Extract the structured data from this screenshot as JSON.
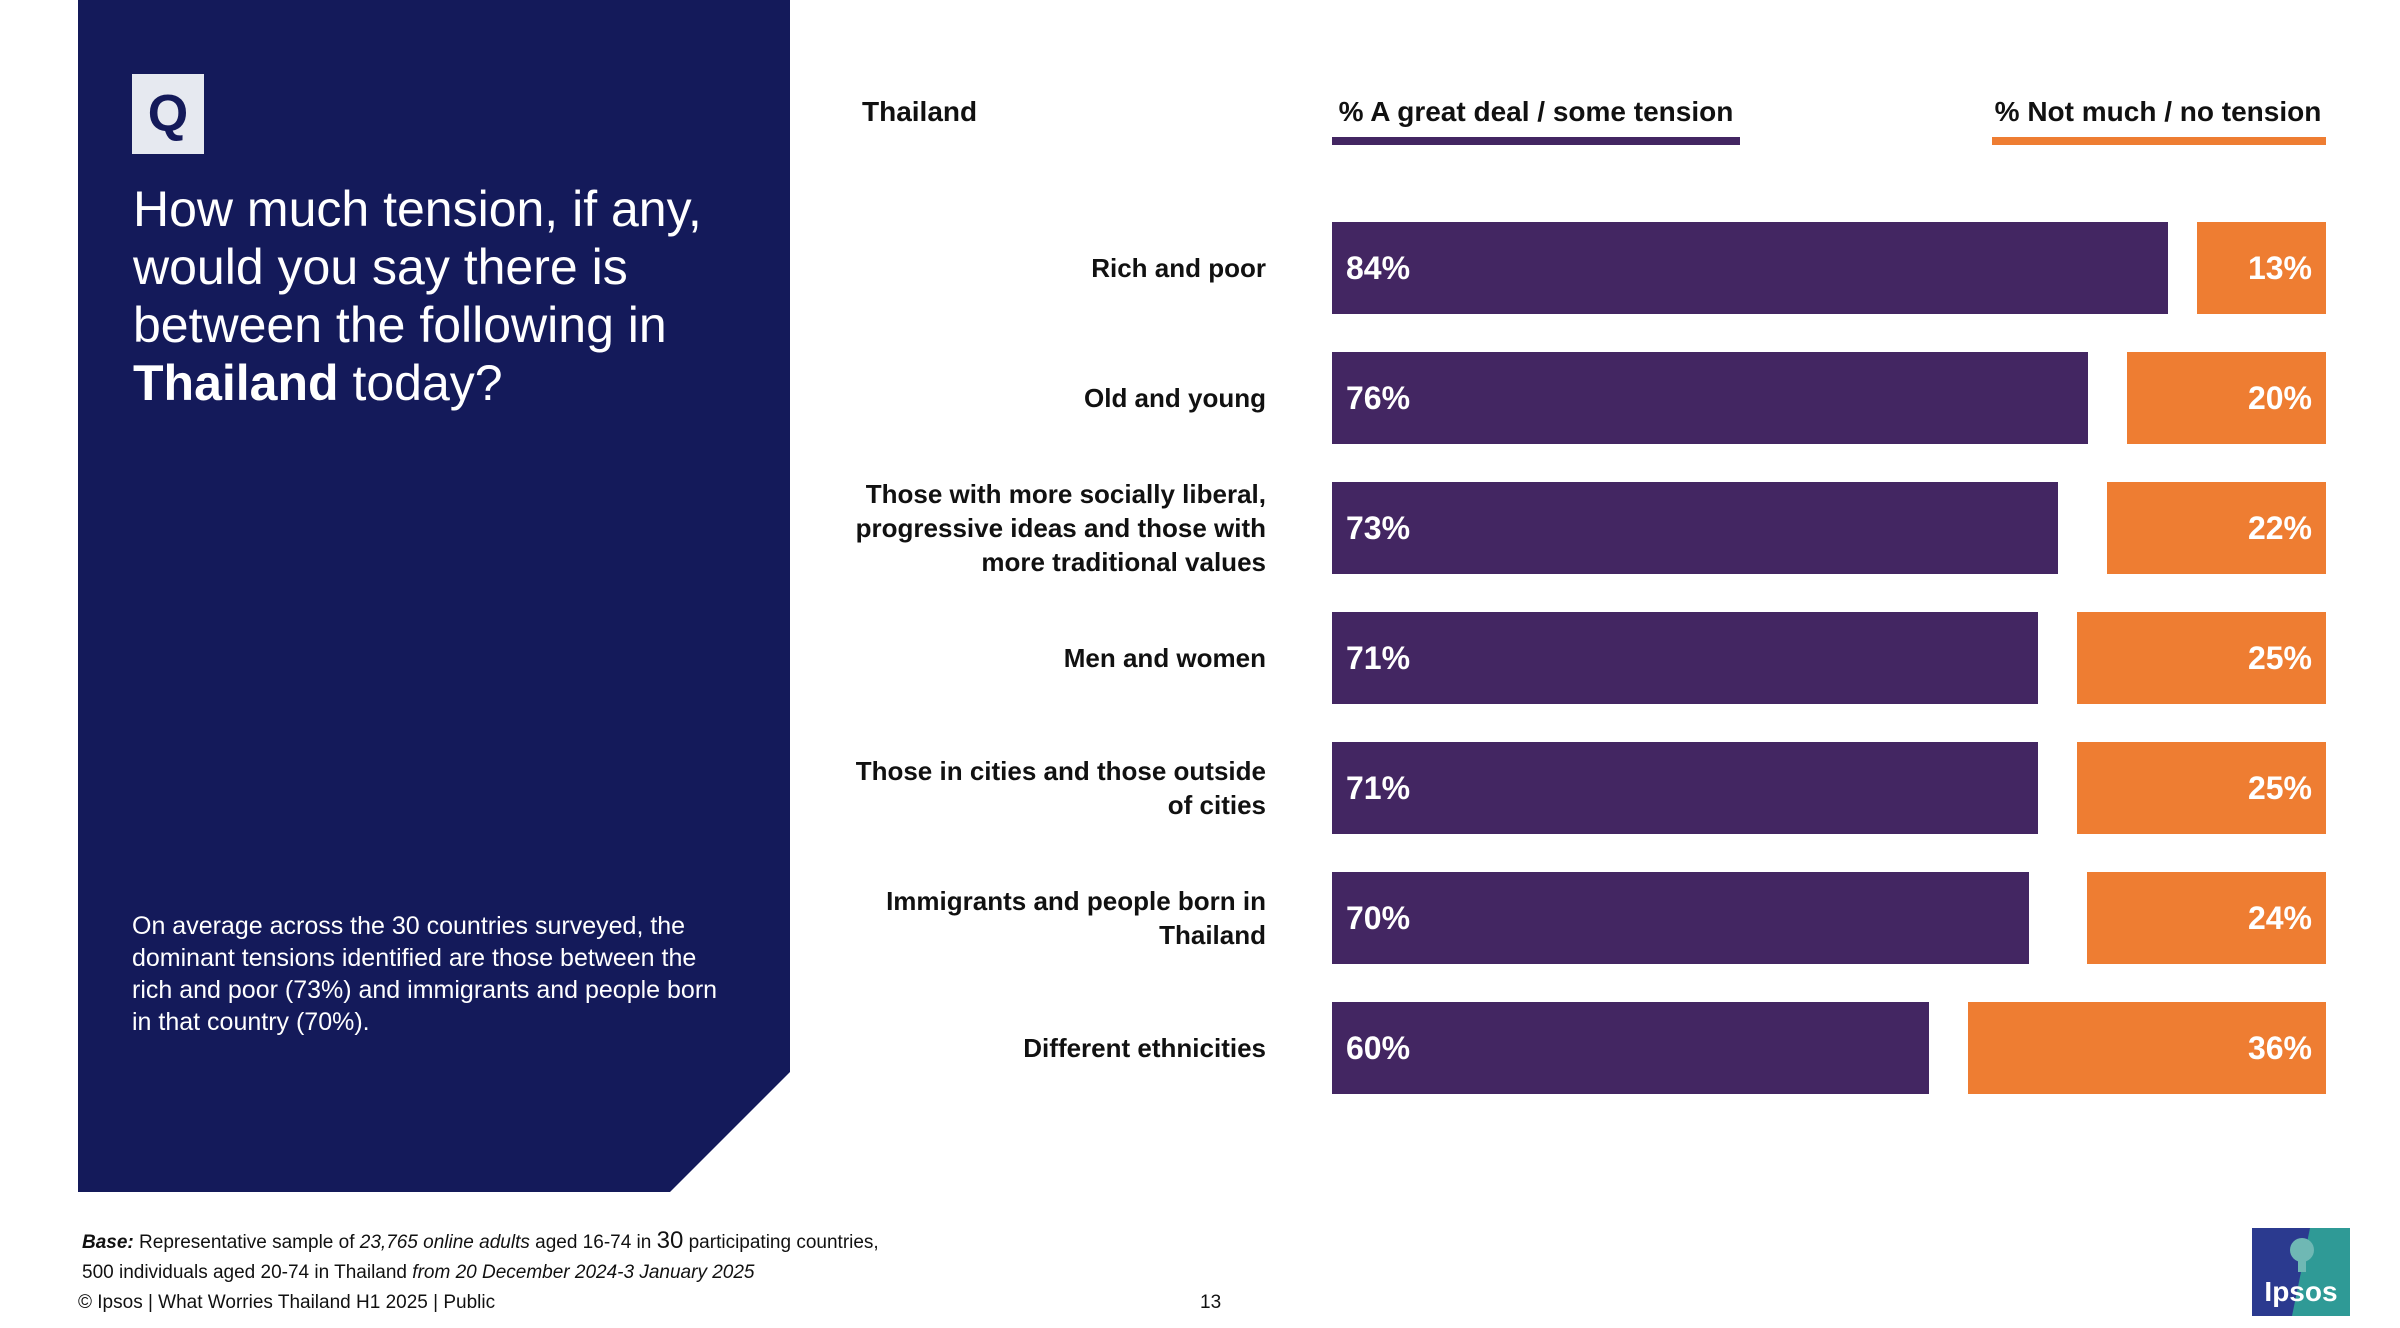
{
  "question": {
    "badge": "Q",
    "text_before": "How much tension, if any, would you say there is between the following in ",
    "country_bold": "Thailand",
    "text_after": " today?"
  },
  "summary": "On average across the 30 countries surveyed, the dominant tensions identified are those between the rich and poor (73%) and immigrants and people born in that country (70%).",
  "chart_data": {
    "type": "bar",
    "orientation": "horizontal-diverging",
    "title": "Thailand",
    "categories": [
      "Rich and poor",
      "Old and young",
      "Those with more socially liberal, progressive ideas and those with more traditional values",
      "Men and women",
      "Those in cities and those outside of cities",
      "Immigrants and people born in Thailand",
      "Different ethnicities"
    ],
    "series": [
      {
        "name": "% A great deal / some tension",
        "color": "#432662",
        "values": [
          84,
          76,
          73,
          71,
          71,
          70,
          60
        ]
      },
      {
        "name": "% Not much / no tension",
        "color": "#ee7d32",
        "values": [
          13,
          20,
          22,
          25,
          25,
          24,
          36
        ]
      }
    ],
    "value_suffix": "%",
    "ylim": [
      0,
      100
    ]
  },
  "footer": {
    "base_label": "Base:",
    "base_line1_a": " Representative sample of ",
    "base_line1_b": "23,765 online adults",
    "base_line1_c": " aged 16-74 in ",
    "base_line1_d": "30",
    "base_line1_e": " participating countries,",
    "base_line2_a": "500 individuals aged 20-74 in Thailand ",
    "base_line2_b": "from 20 December 2024-3 January 2025",
    "copyright": "© Ipsos | What Worries Thailand H1 2025 | Public",
    "page_number": "13"
  },
  "logo": {
    "text": "Ipsos",
    "color": "#2f9a96"
  }
}
